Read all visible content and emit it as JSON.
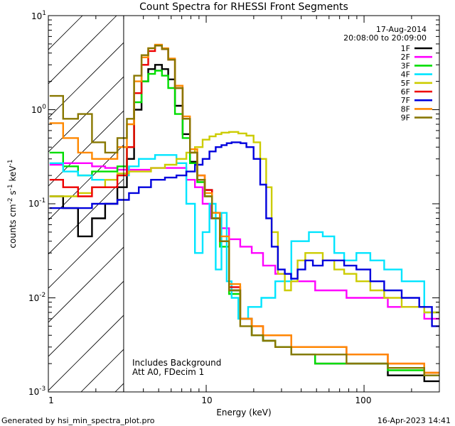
{
  "chart_data": {
    "type": "line",
    "title": "Count Spectra for RHESSI Front Segments",
    "xlabel": "Energy (keV)",
    "ylabel_parts": [
      "counts cm",
      "-2",
      " s",
      "-1",
      " keV",
      "-1"
    ],
    "xscale": "log",
    "yscale": "log",
    "xlim": [
      1,
      300
    ],
    "ylim": [
      0.001,
      10
    ],
    "xticks": [
      {
        "value": 10,
        "label": "10"
      },
      {
        "value": 100,
        "label": "100"
      }
    ],
    "xtick_label_1": "1",
    "yticks": [
      {
        "value": 0.001,
        "base": "10",
        "exp": "-3"
      },
      {
        "value": 0.01,
        "base": "10",
        "exp": "-2"
      },
      {
        "value": 0.1,
        "base": "10",
        "exp": "-1"
      },
      {
        "value": 1,
        "base": "10",
        "exp": "0"
      },
      {
        "value": 10,
        "base": "10",
        "exp": "1"
      }
    ],
    "hatched_region_keV": [
      1,
      3
    ],
    "date": "17-Aug-2014",
    "time_range": "20:08:00 to 20:09:00",
    "annotations": [
      "Includes Background",
      "Att A0, FDecim 1"
    ],
    "legend_position": "top-right",
    "series": [
      {
        "name": "1F",
        "color": "#000000",
        "x": [
          1.1,
          1.4,
          1.7,
          2.1,
          2.5,
          3,
          3.3,
          3.7,
          4.1,
          4.5,
          5,
          5.5,
          6,
          6.7,
          7.5,
          8.3,
          9.3,
          10.3,
          11.5,
          13,
          15,
          18,
          21,
          25,
          30,
          40,
          60,
          100,
          200,
          290
        ],
        "y": [
          0.12,
          0.09,
          0.045,
          0.07,
          0.1,
          0.15,
          0.3,
          1.0,
          2.0,
          2.7,
          3.0,
          2.7,
          2.1,
          1.1,
          0.55,
          0.28,
          0.18,
          0.14,
          0.08,
          0.04,
          0.012,
          0.006,
          0.004,
          0.0035,
          0.003,
          0.0025,
          0.002,
          0.002,
          0.0015,
          0.0013
        ]
      },
      {
        "name": "2F",
        "color": "#ff00ff",
        "x": [
          1.1,
          1.4,
          1.7,
          2.1,
          2.5,
          3,
          3.5,
          4,
          5,
          6,
          7,
          8,
          9,
          10,
          11.5,
          13,
          15,
          18,
          21,
          25,
          30,
          40,
          60,
          100,
          200,
          290
        ],
        "y": [
          0.26,
          0.27,
          0.27,
          0.25,
          0.24,
          0.23,
          0.23,
          0.23,
          0.24,
          0.24,
          0.24,
          0.18,
          0.15,
          0.1,
          0.07,
          0.055,
          0.042,
          0.035,
          0.03,
          0.022,
          0.018,
          0.015,
          0.012,
          0.01,
          0.008,
          0.006
        ]
      },
      {
        "name": "3F",
        "color": "#00dd00",
        "x": [
          1.1,
          1.4,
          1.7,
          2.1,
          2.5,
          3,
          3.3,
          3.7,
          4.1,
          4.5,
          5,
          5.5,
          6,
          6.7,
          7.5,
          8.3,
          9.3,
          10.3,
          11.5,
          13,
          15,
          18,
          21,
          25,
          30,
          40,
          60,
          100,
          200,
          290
        ],
        "y": [
          0.35,
          0.25,
          0.2,
          0.22,
          0.22,
          0.25,
          0.4,
          1.2,
          2.0,
          2.4,
          2.6,
          2.3,
          1.7,
          0.9,
          0.5,
          0.27,
          0.17,
          0.12,
          0.07,
          0.035,
          0.011,
          0.006,
          0.004,
          0.0035,
          0.003,
          0.0025,
          0.002,
          0.002,
          0.0017,
          0.0015
        ]
      },
      {
        "name": "4F",
        "color": "#00e5ff",
        "x": [
          1.1,
          1.4,
          1.7,
          2.1,
          2.5,
          3,
          3.5,
          4,
          4.5,
          5,
          6,
          7,
          8,
          9,
          10,
          11,
          12,
          13,
          14,
          15,
          17,
          20,
          25,
          30,
          40,
          50,
          60,
          70,
          80,
          100,
          120,
          150,
          200,
          290
        ],
        "y": [
          0.27,
          0.22,
          0.2,
          0.18,
          0.18,
          0.2,
          0.25,
          0.3,
          0.3,
          0.33,
          0.33,
          0.27,
          0.1,
          0.03,
          0.05,
          0.1,
          0.02,
          0.08,
          0.015,
          0.01,
          0.006,
          0.008,
          0.01,
          0.015,
          0.04,
          0.05,
          0.045,
          0.03,
          0.025,
          0.03,
          0.025,
          0.02,
          0.015,
          0.007
        ]
      },
      {
        "name": "5F",
        "color": "#cccc00",
        "x": [
          1.1,
          1.4,
          1.7,
          2.1,
          2.5,
          3,
          3.5,
          4,
          5,
          6,
          7,
          8,
          9,
          10,
          11,
          12,
          13,
          15,
          17,
          19,
          21,
          23,
          25,
          27,
          30,
          33,
          36,
          40,
          45,
          50,
          60,
          70,
          80,
          100,
          120,
          150,
          200,
          290
        ],
        "y": [
          0.12,
          0.12,
          0.13,
          0.15,
          0.18,
          0.21,
          0.22,
          0.22,
          0.24,
          0.26,
          0.3,
          0.35,
          0.4,
          0.48,
          0.52,
          0.55,
          0.57,
          0.58,
          0.56,
          0.53,
          0.45,
          0.3,
          0.15,
          0.05,
          0.018,
          0.012,
          0.015,
          0.025,
          0.03,
          0.03,
          0.025,
          0.02,
          0.018,
          0.015,
          0.012,
          0.01,
          0.008,
          0.007
        ]
      },
      {
        "name": "6F",
        "color": "#ee0000",
        "x": [
          1.1,
          1.4,
          1.7,
          2.1,
          2.5,
          3,
          3.3,
          3.7,
          4.1,
          4.5,
          5,
          5.5,
          6,
          6.7,
          7.5,
          8.3,
          9.3,
          10.3,
          11.5,
          13,
          15,
          18,
          21,
          25,
          30,
          40,
          60,
          100,
          200,
          290
        ],
        "y": [
          0.18,
          0.15,
          0.12,
          0.15,
          0.15,
          0.2,
          0.4,
          1.5,
          3.0,
          4.2,
          4.8,
          4.4,
          3.4,
          1.7,
          0.8,
          0.35,
          0.2,
          0.14,
          0.08,
          0.04,
          0.013,
          0.006,
          0.005,
          0.004,
          0.004,
          0.003,
          0.003,
          0.0025,
          0.002,
          0.0016
        ]
      },
      {
        "name": "7F",
        "color": "#0000dd",
        "x": [
          1.1,
          1.4,
          1.7,
          2.1,
          2.5,
          3,
          3.5,
          4,
          5,
          6,
          7,
          8,
          9,
          10,
          11,
          12,
          13,
          14,
          15,
          16,
          17,
          19,
          21,
          23,
          25,
          27,
          30,
          33,
          36,
          40,
          45,
          50,
          60,
          70,
          80,
          100,
          120,
          150,
          200,
          250,
          290
        ],
        "y": [
          0.09,
          0.09,
          0.09,
          0.1,
          0.1,
          0.11,
          0.13,
          0.15,
          0.18,
          0.19,
          0.2,
          0.22,
          0.26,
          0.3,
          0.36,
          0.4,
          0.42,
          0.44,
          0.45,
          0.45,
          0.44,
          0.4,
          0.3,
          0.16,
          0.07,
          0.035,
          0.02,
          0.018,
          0.016,
          0.02,
          0.025,
          0.022,
          0.025,
          0.025,
          0.022,
          0.02,
          0.015,
          0.012,
          0.01,
          0.008,
          0.005
        ]
      },
      {
        "name": "8F",
        "color": "#ff8800",
        "x": [
          1.1,
          1.4,
          1.7,
          2.1,
          2.5,
          3,
          3.3,
          3.7,
          4.1,
          4.5,
          5,
          5.5,
          6,
          6.7,
          7.5,
          8.3,
          9.3,
          10.3,
          11.5,
          13,
          15,
          18,
          21,
          25,
          30,
          40,
          60,
          100,
          200,
          290
        ],
        "y": [
          0.72,
          0.5,
          0.35,
          0.3,
          0.3,
          0.4,
          0.7,
          2.0,
          3.6,
          4.5,
          4.9,
          4.5,
          3.5,
          1.8,
          0.85,
          0.38,
          0.2,
          0.13,
          0.08,
          0.045,
          0.014,
          0.006,
          0.005,
          0.004,
          0.004,
          0.003,
          0.003,
          0.0025,
          0.002,
          0.0016
        ]
      },
      {
        "name": "9F",
        "color": "#887700",
        "x": [
          1.1,
          1.4,
          1.7,
          2.1,
          2.5,
          3,
          3.3,
          3.7,
          4.1,
          4.5,
          5,
          5.5,
          6,
          6.7,
          7.5,
          8.3,
          9.3,
          10.3,
          11.5,
          13,
          15,
          18,
          21,
          25,
          30,
          40,
          60,
          100,
          200,
          290
        ],
        "y": [
          1.4,
          0.8,
          0.9,
          0.45,
          0.35,
          0.5,
          0.8,
          2.3,
          3.8,
          4.5,
          4.8,
          4.4,
          3.4,
          1.7,
          0.8,
          0.35,
          0.18,
          0.12,
          0.07,
          0.04,
          0.012,
          0.005,
          0.004,
          0.0035,
          0.003,
          0.0025,
          0.0025,
          0.002,
          0.0018,
          0.0015
        ]
      }
    ]
  },
  "footer": {
    "generated_by": "Generated by hsi_min_spectra_plot.pro",
    "timestamp": "16-Apr-2023 14:41"
  }
}
